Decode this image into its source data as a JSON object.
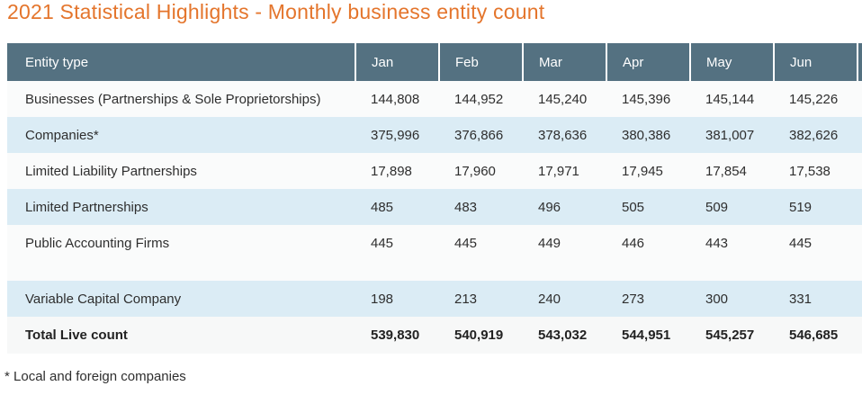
{
  "title": "2021 Statistical Highlights - Monthly business entity count",
  "footnote": "* Local and foreign companies",
  "colors": {
    "title_orange": "#E4752C",
    "header_bg": "#547181",
    "header_text": "#FFFFFF",
    "row_alt_blue": "#DBECF5",
    "row_white": "#FAFBFB",
    "total_row_bg": "#F7F8F8"
  },
  "table": {
    "columns": [
      "Entity type",
      "Jan",
      "Feb",
      "Mar",
      "Apr",
      "May",
      "Jun"
    ],
    "rows": [
      {
        "label": "Businesses (Partnerships & Sole Proprietorships)",
        "values": [
          "144,808",
          "144,952",
          "145,240",
          "145,396",
          "145,144",
          "145,226"
        ]
      },
      {
        "label": "Companies*",
        "values": [
          "375,996",
          "376,866",
          "378,636",
          "380,386",
          "381,007",
          "382,626"
        ]
      },
      {
        "label": "Limited Liability Partnerships",
        "values": [
          "17,898",
          "17,960",
          "17,971",
          "17,945",
          "17,854",
          "17,538"
        ]
      },
      {
        "label": "Limited Partnerships",
        "values": [
          "485",
          "483",
          "496",
          "505",
          "509",
          "519"
        ]
      },
      {
        "label": "Public Accounting Firms",
        "values": [
          "445",
          "445",
          "449",
          "446",
          "443",
          "445"
        ]
      },
      {
        "label": "",
        "values": [
          "",
          "",
          "",
          "",
          "",
          ""
        ],
        "spacer": true
      },
      {
        "label": "Variable Capital Company",
        "values": [
          "198",
          "213",
          "240",
          "273",
          "300",
          "331"
        ]
      },
      {
        "label": "Total Live count",
        "values": [
          "539,830",
          "540,919",
          "543,032",
          "544,951",
          "545,257",
          "546,685"
        ],
        "total": true
      }
    ]
  },
  "chart_data": {
    "type": "table",
    "title": "2021 Statistical Highlights - Monthly business entity count",
    "categories": [
      "Jan",
      "Feb",
      "Mar",
      "Apr",
      "May",
      "Jun"
    ],
    "series": [
      {
        "name": "Businesses (Partnerships & Sole Proprietorships)",
        "values": [
          144808,
          144952,
          145240,
          145396,
          145144,
          145226
        ]
      },
      {
        "name": "Companies*",
        "values": [
          375996,
          376866,
          378636,
          380386,
          381007,
          382626
        ]
      },
      {
        "name": "Limited Liability Partnerships",
        "values": [
          17898,
          17960,
          17971,
          17945,
          17854,
          17538
        ]
      },
      {
        "name": "Limited Partnerships",
        "values": [
          485,
          483,
          496,
          505,
          509,
          519
        ]
      },
      {
        "name": "Public Accounting Firms",
        "values": [
          445,
          445,
          449,
          446,
          443,
          445
        ]
      },
      {
        "name": "Variable Capital Company",
        "values": [
          198,
          213,
          240,
          273,
          300,
          331
        ]
      },
      {
        "name": "Total Live count",
        "values": [
          539830,
          540919,
          543032,
          544951,
          545257,
          546685
        ]
      }
    ],
    "footnote": "* Local and foreign companies"
  }
}
